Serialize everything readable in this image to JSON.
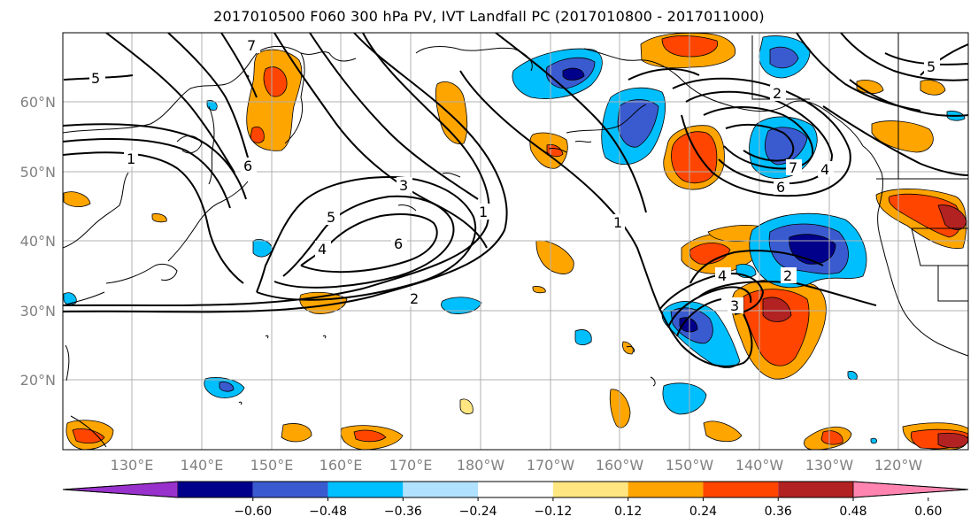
{
  "title": "2017010500 F060 300 hPa PV, IVT Landfall PC (2017010800 - 2017011000)",
  "lat_labels": [
    "60°N",
    "50°N",
    "40°N",
    "30°N",
    "20°N"
  ],
  "lon_labels": [
    "130°E",
    "140°E",
    "150°E",
    "160°E",
    "170°E",
    "180°W",
    "170°W",
    "160°W",
    "150°W",
    "140°W",
    "130°W",
    "120°W"
  ],
  "colorbar": {
    "ticks": [
      "−0.60",
      "−0.48",
      "−0.36",
      "−0.24",
      "−0.12",
      "0.12",
      "0.24",
      "0.36",
      "0.48",
      "0.60"
    ],
    "colors": [
      "#9932cc",
      "#00008b",
      "#3a5bcf",
      "#00bfff",
      "#b0e2ff",
      "#ffffff",
      "#ffe680",
      "#ffa500",
      "#ff4500",
      "#b22222",
      "#ff85b0"
    ]
  },
  "contour_labels": [
    "5",
    "7",
    "1",
    "6",
    "3",
    "1",
    "5",
    "4",
    "6",
    "2",
    "1",
    "2",
    "5",
    "6",
    "7",
    "4",
    "4",
    "3",
    "2"
  ]
}
